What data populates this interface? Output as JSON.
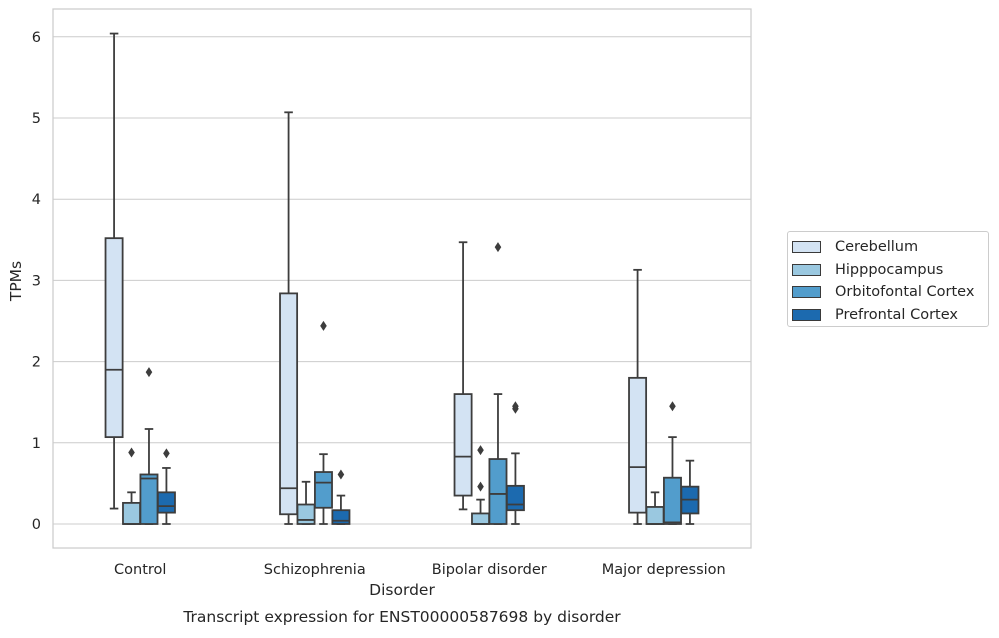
{
  "chart_data": {
    "type": "box",
    "title": "Transcript expression for ENST00000587698 by disorder",
    "xlabel": "Disorder",
    "ylabel": "TPMs",
    "ylim": [
      -0.3,
      6.35
    ],
    "yticks": [
      "0",
      "1",
      "2",
      "3",
      "4",
      "5",
      "6"
    ],
    "grid": true,
    "legend_position": "right",
    "categories": [
      "Control",
      "Schizophrenia",
      "Bipolar disorder",
      "Major depression"
    ],
    "series": [
      {
        "name": "Cerebellum",
        "color": "#d3e3f3",
        "boxes": [
          {
            "whislo": 0.19,
            "q1": 1.07,
            "med": 1.9,
            "q3": 3.52,
            "whishi": 6.04,
            "fliers": []
          },
          {
            "whislo": 0.0,
            "q1": 0.12,
            "med": 0.44,
            "q3": 2.84,
            "whishi": 5.07,
            "fliers": []
          },
          {
            "whislo": 0.18,
            "q1": 0.35,
            "med": 0.83,
            "q3": 1.6,
            "whishi": 3.47,
            "fliers": []
          },
          {
            "whislo": 0.0,
            "q1": 0.14,
            "med": 0.7,
            "q3": 1.8,
            "whishi": 3.13,
            "fliers": []
          }
        ]
      },
      {
        "name": "Hipppocampus",
        "color": "#9ac8e0",
        "boxes": [
          {
            "whislo": 0.0,
            "q1": 0.0,
            "med": 0.0,
            "q3": 0.26,
            "whishi": 0.39,
            "fliers": [
              0.88
            ]
          },
          {
            "whislo": 0.0,
            "q1": 0.0,
            "med": 0.05,
            "q3": 0.24,
            "whishi": 0.52,
            "fliers": []
          },
          {
            "whislo": 0.0,
            "q1": 0.0,
            "med": 0.0,
            "q3": 0.13,
            "whishi": 0.3,
            "fliers": [
              0.46,
              0.91
            ]
          },
          {
            "whislo": 0.0,
            "q1": 0.0,
            "med": 0.0,
            "q3": 0.21,
            "whishi": 0.39,
            "fliers": []
          }
        ]
      },
      {
        "name": "Orbitofontal Cortex",
        "color": "#529dcc",
        "boxes": [
          {
            "whislo": 0.0,
            "q1": 0.0,
            "med": 0.56,
            "q3": 0.61,
            "whishi": 1.17,
            "fliers": [
              1.87
            ]
          },
          {
            "whislo": 0.0,
            "q1": 0.2,
            "med": 0.51,
            "q3": 0.64,
            "whishi": 0.86,
            "fliers": [
              2.44
            ]
          },
          {
            "whislo": 0.0,
            "q1": 0.0,
            "med": 0.37,
            "q3": 0.8,
            "whishi": 1.6,
            "fliers": [
              3.41
            ]
          },
          {
            "whislo": 0.0,
            "q1": 0.0,
            "med": 0.02,
            "q3": 0.57,
            "whishi": 1.07,
            "fliers": [
              1.45
            ]
          }
        ]
      },
      {
        "name": "Prefrontal Cortex",
        "color": "#1c6aaf",
        "boxes": [
          {
            "whislo": 0.0,
            "q1": 0.14,
            "med": 0.22,
            "q3": 0.39,
            "whishi": 0.69,
            "fliers": [
              0.87
            ]
          },
          {
            "whislo": 0.0,
            "q1": 0.0,
            "med": 0.04,
            "q3": 0.17,
            "whishi": 0.35,
            "fliers": [
              0.61
            ]
          },
          {
            "whislo": 0.0,
            "q1": 0.17,
            "med": 0.24,
            "q3": 0.47,
            "whishi": 0.87,
            "fliers": [
              1.42,
              1.45
            ]
          },
          {
            "whislo": 0.0,
            "q1": 0.13,
            "med": 0.3,
            "q3": 0.46,
            "whishi": 0.78,
            "fliers": []
          }
        ]
      }
    ]
  }
}
